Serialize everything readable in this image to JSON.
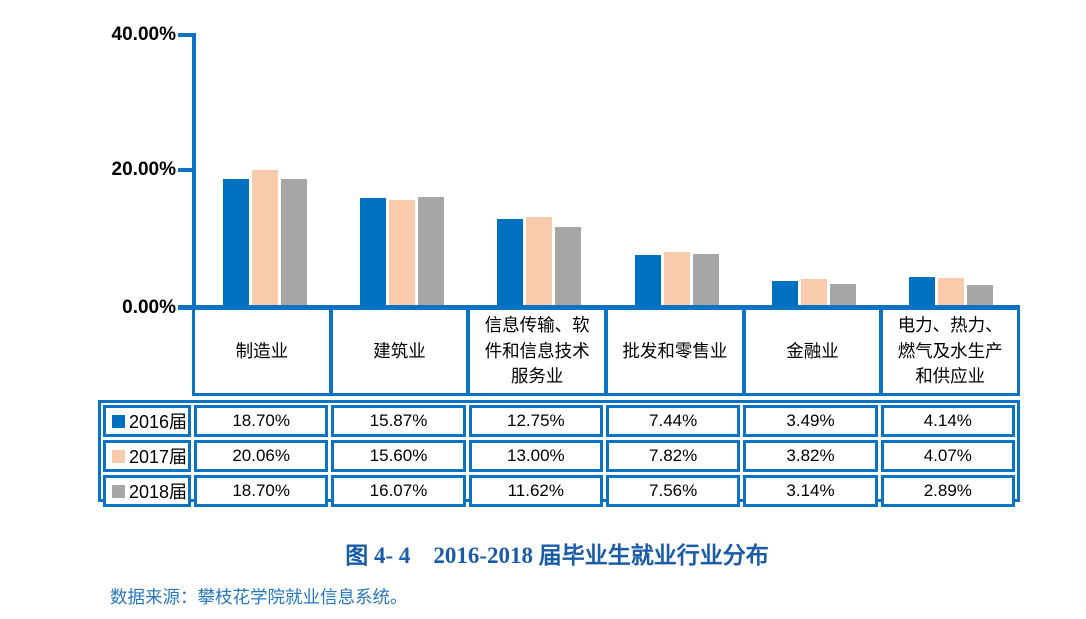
{
  "colors": {
    "series_2016_blue": "#0070C0",
    "series_2017_peach": "#F8CBAD",
    "series_2018_gray": "#A6A6A6",
    "axis_and_table_border_blue": "#0B72C4",
    "caption_blue": "#1A5CA8",
    "source_blue": "#2878BE",
    "background": "#FFFFFF",
    "text": "#000000"
  },
  "chart_data": {
    "type": "bar",
    "title": "图 4- 4　2016-2018 届毕业生就业行业分布",
    "categories": [
      "制造业",
      "建筑业",
      "信息传输、软件和信息技术服务业",
      "批发和零售业",
      "金融业",
      "电力、热力、燃气及水生产和供应业"
    ],
    "series": [
      {
        "name": "2016届",
        "color": "#0070C0",
        "values": [
          18.7,
          15.87,
          12.75,
          7.44,
          3.49,
          4.14
        ]
      },
      {
        "name": "2017届",
        "color": "#F8CBAD",
        "values": [
          20.06,
          15.6,
          13.0,
          7.82,
          3.82,
          4.07
        ]
      },
      {
        "name": "2018届",
        "color": "#A6A6A6",
        "values": [
          18.7,
          16.07,
          11.62,
          7.56,
          3.14,
          2.89
        ]
      }
    ],
    "ylim": [
      0,
      40
    ],
    "y_tick_labels": [
      "40.00%",
      "20.00%",
      "0.00%"
    ],
    "y_tick_values": [
      40,
      20,
      0
    ],
    "grid": false,
    "legend_position": "table-rows-left",
    "value_unit": "percent"
  },
  "table": {
    "headers": [
      "制造业",
      "建筑业",
      "信息传输、软件和信息技术服务业",
      "批发和零售业",
      "金融业",
      "电力、热力、燃气及水生产和供应业"
    ],
    "rows": [
      {
        "legend": "2016届",
        "values": [
          "18.70%",
          "15.87%",
          "12.75%",
          "7.44%",
          "3.49%",
          "4.14%"
        ]
      },
      {
        "legend": "2017届",
        "values": [
          "20.06%",
          "15.60%",
          "13.00%",
          "7.82%",
          "3.82%",
          "4.07%"
        ]
      },
      {
        "legend": "2018届",
        "values": [
          "18.70%",
          "16.07%",
          "11.62%",
          "7.56%",
          "3.14%",
          "2.89%"
        ]
      }
    ]
  },
  "caption": "图 4- 4　2016-2018 届毕业生就业行业分布",
  "source": "数据来源：攀枝花学院就业信息系统。"
}
